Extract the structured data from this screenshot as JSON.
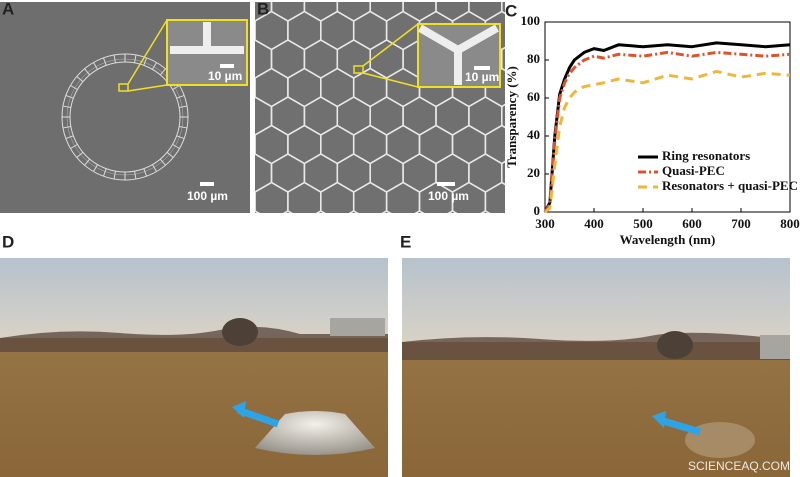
{
  "figure": {
    "panel_labels": [
      "A",
      "B",
      "C",
      "D",
      "E"
    ],
    "scale_bars": [
      "100 µm",
      "10 µm",
      "100 µm",
      "10 µm"
    ],
    "watermark": "SCIENCEAQ.COM"
  },
  "chart_data": {
    "type": "line",
    "xlabel": "Wavelength (nm)",
    "ylabel": "Transparency (%)",
    "x": [
      300,
      310,
      320,
      330,
      340,
      350,
      360,
      370,
      380,
      400,
      420,
      450,
      500,
      550,
      600,
      650,
      700,
      750,
      800
    ],
    "series": [
      {
        "name": "Ring resonators",
        "color": "#000000",
        "values": [
          0,
          5,
          40,
          62,
          70,
          76,
          80,
          82,
          84,
          86,
          85,
          88,
          87,
          88,
          87,
          89,
          88,
          87,
          88
        ]
      },
      {
        "name": "Quasi-PEC",
        "color": "#e0522a",
        "values": [
          0,
          4,
          38,
          60,
          68,
          73,
          76,
          78,
          80,
          82,
          81,
          83,
          82,
          84,
          82,
          84,
          83,
          82,
          83
        ]
      },
      {
        "name": "Resonators + quasi-PEC",
        "color": "#efb73a",
        "values": [
          0,
          2,
          25,
          45,
          55,
          60,
          63,
          65,
          66,
          67,
          68,
          70,
          68,
          72,
          70,
          74,
          71,
          73,
          72
        ]
      }
    ],
    "xlim": [
      300,
      800
    ],
    "xticks": [
      300,
      400,
      500,
      600,
      700,
      800
    ],
    "ylim": [
      0,
      100
    ],
    "yticks": [
      0,
      20,
      40,
      60,
      80,
      100
    ],
    "legend": "lower right"
  }
}
